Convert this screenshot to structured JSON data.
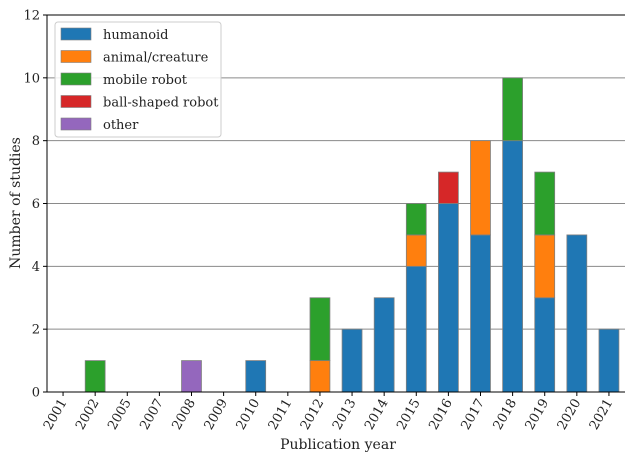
{
  "chart_data": {
    "type": "bar",
    "stacked": true,
    "xlabel": "Publication year",
    "ylabel": "Number of studies",
    "ylim": [
      0,
      12
    ],
    "yticks": [
      0,
      2,
      4,
      6,
      8,
      10,
      12
    ],
    "grid": "y-major",
    "legend_position": "top-left",
    "categories": [
      "2001",
      "2002",
      "2005",
      "2007",
      "2008",
      "2009",
      "2010",
      "2011",
      "2012",
      "2013",
      "2014",
      "2015",
      "2016",
      "2017",
      "2018",
      "2019",
      "2020",
      "2021"
    ],
    "series": [
      {
        "name": "humanoid",
        "color": "#1f77b4",
        "values": [
          0,
          0,
          0,
          0,
          0,
          0,
          1,
          0,
          0,
          2,
          3,
          4,
          6,
          5,
          8,
          3,
          5,
          2
        ]
      },
      {
        "name": "animal/creature",
        "color": "#ff7f0e",
        "values": [
          0,
          0,
          0,
          0,
          0,
          0,
          0,
          0,
          1,
          0,
          0,
          1,
          0,
          3,
          0,
          2,
          0,
          0
        ]
      },
      {
        "name": "mobile robot",
        "color": "#2ca02c",
        "values": [
          0,
          1,
          0,
          0,
          0,
          0,
          0,
          0,
          2,
          0,
          0,
          1,
          0,
          0,
          2,
          2,
          0,
          0
        ]
      },
      {
        "name": "ball-shaped robot",
        "color": "#d62728",
        "values": [
          0,
          0,
          0,
          0,
          0,
          0,
          0,
          0,
          0,
          0,
          0,
          0,
          1,
          0,
          0,
          0,
          0,
          0
        ]
      },
      {
        "name": "other",
        "color": "#9467bd",
        "values": [
          0,
          0,
          0,
          0,
          1,
          0,
          0,
          0,
          0,
          0,
          0,
          0,
          0,
          0,
          0,
          0,
          0,
          0
        ]
      }
    ]
  }
}
